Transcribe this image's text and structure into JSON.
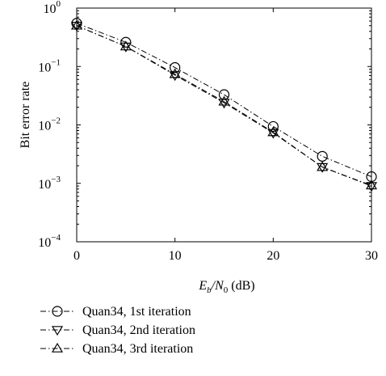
{
  "chart_data": {
    "type": "line",
    "title": "",
    "xlabel": {
      "main": "E",
      "sub1": "b",
      "mid": "/N",
      "sub2": "0",
      "tail": " (dB)"
    },
    "ylabel": "Bit error rate",
    "x": [
      0,
      5,
      10,
      15,
      20,
      25,
      30
    ],
    "xlim": [
      0,
      30
    ],
    "ylim": [
      0.0001,
      1
    ],
    "yscale": "log",
    "xticks": [
      "0",
      "10",
      "20",
      "30"
    ],
    "yticks": [
      {
        "base": "10",
        "exp": "0"
      },
      {
        "base": "10",
        "exp": "−1"
      },
      {
        "base": "10",
        "exp": "−2"
      },
      {
        "base": "10",
        "exp": "−3"
      },
      {
        "base": "10",
        "exp": "−4"
      }
    ],
    "grid": false,
    "legend_position": "below",
    "series": [
      {
        "name": "Quan34, 1st iteration",
        "marker": "circle",
        "dash": "dash-dot",
        "values": [
          0.55,
          0.26,
          0.096,
          0.033,
          0.0094,
          0.0029,
          0.0013
        ]
      },
      {
        "name": "Quan34, 2nd iteration",
        "marker": "triangle-down",
        "dash": "dash-dot",
        "values": [
          0.5,
          0.22,
          0.071,
          0.024,
          0.0073,
          0.0019,
          0.0009
        ]
      },
      {
        "name": "Quan34, 3rd iteration",
        "marker": "triangle-up",
        "dash": "dash-dot",
        "values": [
          0.5,
          0.22,
          0.074,
          0.025,
          0.0075,
          0.0019,
          0.00092
        ]
      }
    ]
  }
}
